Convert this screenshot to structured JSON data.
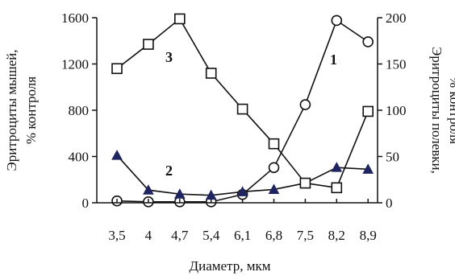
{
  "chart_data": {
    "type": "line",
    "x_categories": [
      "3,5",
      "4",
      "4,7",
      "5,4",
      "6,1",
      "6,8",
      "7,5",
      "8,2",
      "8,9"
    ],
    "xlabel": "Диаметр, мкм",
    "y_left": {
      "label_line1": "Эритроциты мышей,",
      "label_line2": "% контроля",
      "ticks": [
        "0",
        "400",
        "800",
        "1200",
        "1600"
      ],
      "tick_values": [
        0,
        400,
        800,
        1200,
        1600
      ],
      "range": [
        0,
        1600
      ]
    },
    "y_right": {
      "label_line1": "Эритроциты полевки,",
      "label_line2": "% контроля",
      "ticks": [
        "0",
        "50",
        "100",
        "150",
        "200"
      ],
      "tick_values": [
        0,
        50,
        100,
        150,
        200
      ],
      "range": [
        0,
        200
      ]
    },
    "series": [
      {
        "label": "1",
        "axis": "right",
        "marker": "circle",
        "values": [
          2,
          1,
          1,
          1,
          9,
          38,
          106,
          197,
          174
        ]
      },
      {
        "label": "2",
        "axis": "left",
        "marker": "triangle",
        "values": [
          410,
          110,
          75,
          65,
          95,
          115,
          170,
          305,
          290
        ]
      },
      {
        "label": "3",
        "axis": "left",
        "marker": "square",
        "values": [
          1160,
          1370,
          1590,
          1120,
          810,
          510,
          170,
          130,
          790
        ]
      }
    ],
    "grid": false,
    "marker_fill": "#ffffff",
    "triangle_fill": "#1f2560",
    "line_color": "#111111"
  }
}
